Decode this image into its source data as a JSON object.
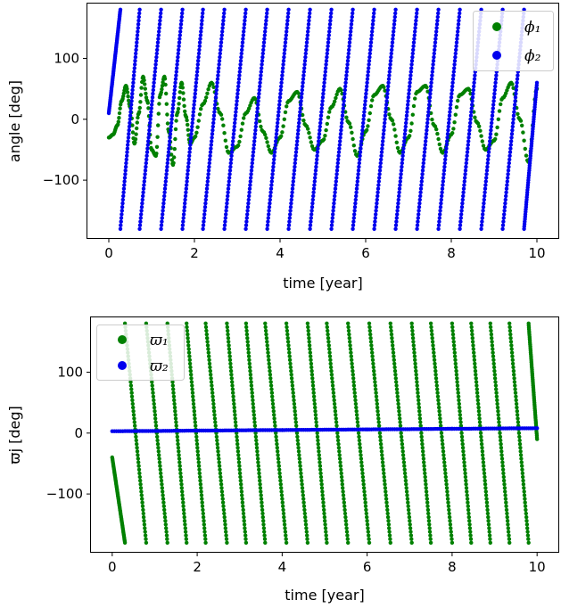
{
  "chart_data": [
    {
      "type": "scatter",
      "xlabel": "time [year]",
      "ylabel": "angle [deg]",
      "xlim": [
        -0.5,
        10.5
      ],
      "ylim": [
        -195,
        190
      ],
      "xticks": [
        0,
        2,
        4,
        6,
        8,
        10
      ],
      "yticks": [
        -100,
        0,
        100
      ],
      "legend_position": "top-right",
      "series": [
        {
          "name": "ϕ₁",
          "color": "#008000",
          "pattern": "oscillating",
          "x": [
            0,
            0.1,
            0.2,
            0.3,
            0.4,
            0.5,
            0.6,
            0.7,
            0.8,
            0.9,
            1.0,
            1.1,
            1.2,
            1.3,
            1.4,
            1.5,
            1.6,
            1.7,
            1.8,
            1.9,
            2.0,
            2.2,
            2.4,
            2.6,
            2.8,
            3.0,
            3.2,
            3.4,
            3.6,
            3.8,
            4.0,
            4.2,
            4.4,
            4.6,
            4.8,
            5.0,
            5.2,
            5.4,
            5.6,
            5.8,
            6.0,
            6.2,
            6.4,
            6.6,
            6.8,
            7.0,
            7.2,
            7.4,
            7.6,
            7.8,
            8.0,
            8.2,
            8.4,
            8.6,
            8.8,
            9.0,
            9.2,
            9.4,
            9.6,
            9.8,
            10.0
          ],
          "y": [
            -30,
            -25,
            -10,
            30,
            55,
            20,
            -40,
            10,
            70,
            30,
            -50,
            -60,
            40,
            70,
            -20,
            -75,
            10,
            60,
            5,
            -40,
            -30,
            25,
            60,
            10,
            -55,
            -45,
            10,
            35,
            -20,
            -55,
            -30,
            30,
            45,
            -10,
            -50,
            -35,
            20,
            50,
            -5,
            -60,
            -20,
            40,
            55,
            0,
            -55,
            -30,
            45,
            55,
            -10,
            -55,
            -25,
            40,
            50,
            -5,
            -50,
            -35,
            35,
            60,
            0,
            -70,
            50
          ]
        },
        {
          "name": "ϕ₂",
          "color": "#0000ee",
          "pattern": "sawtooth-wrap",
          "wraps": [
            [
              0.0,
              0.27
            ],
            [
              0.27,
              0.72
            ],
            [
              0.72,
              1.22
            ],
            [
              1.22,
              1.72
            ],
            [
              1.72,
              2.2
            ],
            [
              2.2,
              2.7
            ],
            [
              2.7,
              3.2
            ],
            [
              3.2,
              3.7
            ],
            [
              3.7,
              4.2
            ],
            [
              4.2,
              4.7
            ],
            [
              4.7,
              5.2
            ],
            [
              5.2,
              5.7
            ],
            [
              5.7,
              6.2
            ],
            [
              6.2,
              6.7
            ],
            [
              6.7,
              7.2
            ],
            [
              7.2,
              7.7
            ],
            [
              7.7,
              8.2
            ],
            [
              8.2,
              8.7
            ],
            [
              8.7,
              9.2
            ],
            [
              9.2,
              9.7
            ],
            [
              9.7,
              10.0
            ]
          ],
          "wrap_start_values": [
            10,
            -180,
            -180,
            -180,
            -180,
            -180,
            -180,
            -180,
            -180,
            -180,
            -180,
            -180,
            -180,
            -180,
            -180,
            -180,
            -180,
            -180,
            -180,
            -180,
            -180
          ],
          "wrap_end_values": [
            180,
            180,
            180,
            180,
            180,
            180,
            180,
            180,
            180,
            180,
            180,
            180,
            180,
            180,
            180,
            180,
            180,
            180,
            180,
            180,
            60
          ]
        }
      ]
    },
    {
      "type": "scatter",
      "xlabel": "time [year]",
      "ylabel": "ϖj [deg]",
      "xlim": [
        -0.5,
        10.5
      ],
      "ylim": [
        -195,
        190
      ],
      "xticks": [
        0,
        2,
        4,
        6,
        8,
        10
      ],
      "yticks": [
        -100,
        0,
        100
      ],
      "legend_position": "top-left",
      "series": [
        {
          "name": "ϖ₁",
          "color": "#008000",
          "pattern": "sawtooth-wrap-decreasing",
          "wraps": [
            [
              0.0,
              0.3
            ],
            [
              0.3,
              0.8
            ],
            [
              0.8,
              1.3
            ],
            [
              1.3,
              1.75
            ],
            [
              1.75,
              2.2
            ],
            [
              2.2,
              2.7
            ],
            [
              2.7,
              3.15
            ],
            [
              3.15,
              3.6
            ],
            [
              3.6,
              4.1
            ],
            [
              4.1,
              4.6
            ],
            [
              4.6,
              5.05
            ],
            [
              5.05,
              5.55
            ],
            [
              5.55,
              6.05
            ],
            [
              6.05,
              6.55
            ],
            [
              6.55,
              7.05
            ],
            [
              7.05,
              7.5
            ],
            [
              7.5,
              8.0
            ],
            [
              8.0,
              8.45
            ],
            [
              8.45,
              8.9
            ],
            [
              8.9,
              9.35
            ],
            [
              9.35,
              9.8
            ],
            [
              9.8,
              10.0
            ]
          ],
          "wrap_start_values": [
            -40,
            180,
            180,
            180,
            180,
            180,
            180,
            180,
            180,
            180,
            180,
            180,
            180,
            180,
            180,
            180,
            180,
            180,
            180,
            180,
            180,
            180
          ],
          "wrap_end_values": [
            -180,
            -180,
            -180,
            -180,
            -180,
            -180,
            -180,
            -180,
            -180,
            -180,
            -180,
            -180,
            -180,
            -180,
            -180,
            -180,
            -180,
            -180,
            -180,
            -180,
            -180,
            -10
          ]
        },
        {
          "name": "ϖ₂",
          "color": "#0000ee",
          "pattern": "line",
          "x": [
            0,
            2,
            4,
            6,
            8,
            10
          ],
          "y": [
            3,
            4,
            5,
            6,
            7,
            8
          ]
        }
      ]
    }
  ]
}
